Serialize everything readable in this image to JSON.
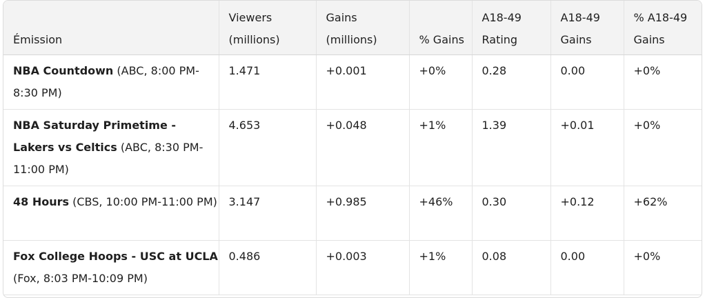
{
  "table": {
    "headers": [
      "Émission",
      "Viewers (millions)",
      "Gains (millions)",
      "% Gains",
      "A18-49 Rating",
      "A18-49 Gains",
      "% A18-49 Gains"
    ],
    "rows": [
      {
        "show": "NBA Countdown",
        "details": " (ABC, 8:00 PM-8:30 PM)",
        "viewers": "1.471",
        "gains": "+0.001",
        "pct_gains": "+0%",
        "a1849_rating": "0.28",
        "a1849_gains": "0.00",
        "pct_a1849_gains": "+0%"
      },
      {
        "show": "NBA Saturday Primetime - Lakers vs Celtics",
        "details": " (ABC, 8:30 PM-11:00 PM)",
        "viewers": "4.653",
        "gains": "+0.048",
        "pct_gains": "+1%",
        "a1849_rating": "1.39",
        "a1849_gains": "+0.01",
        "pct_a1849_gains": "+0%"
      },
      {
        "show": "48 Hours",
        "details": " (CBS, 10:00 PM-11:00 PM)",
        "viewers": "3.147",
        "gains": "+0.985",
        "pct_gains": "+46%",
        "a1849_rating": "0.30",
        "a1849_gains": "+0.12",
        "pct_a1849_gains": "+62%"
      },
      {
        "show": "Fox College Hoops - USC at UCLA",
        "details": " (Fox, 8:03 PM-10:09 PM)",
        "viewers": "0.486",
        "gains": "+0.003",
        "pct_gains": "+1%",
        "a1849_rating": "0.08",
        "a1849_gains": "0.00",
        "pct_a1849_gains": "+0%"
      }
    ]
  }
}
